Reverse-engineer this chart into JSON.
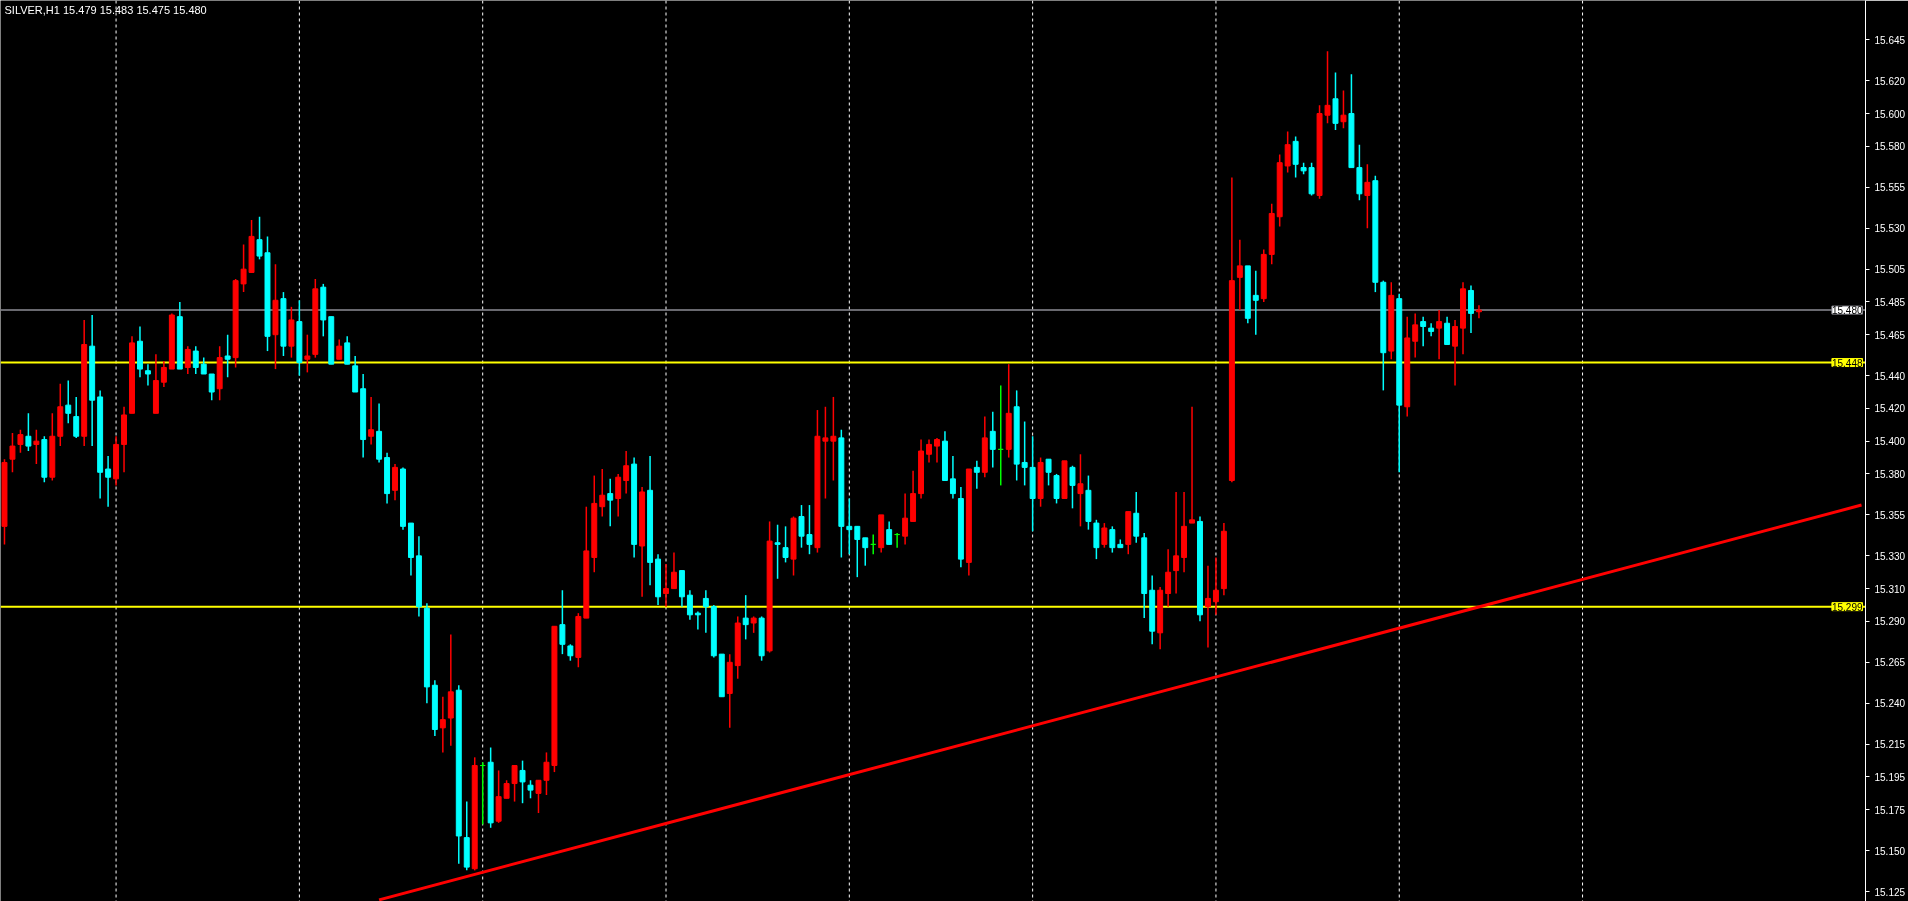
{
  "chart_data": {
    "type": "candlestick",
    "title": "SILVER,H1  15.479 15.483 15.475 15.480",
    "categories": [
      null,
      null,
      null,
      null,
      null,
      null,
      null,
      null,
      null,
      null,
      null,
      null,
      null,
      null,
      null,
      null,
      null,
      null,
      null,
      null,
      null,
      null,
      null,
      null,
      null,
      null,
      null,
      null,
      null,
      null,
      null,
      null,
      null,
      null,
      null,
      null,
      null,
      null,
      null,
      null,
      null,
      null,
      null,
      null,
      null,
      null,
      null,
      null,
      null,
      null,
      null,
      null,
      null,
      null,
      null,
      null,
      null,
      null,
      null,
      null,
      null,
      null,
      null,
      null,
      null,
      null,
      null,
      null,
      null,
      null,
      null,
      null,
      null,
      null,
      null,
      null,
      null,
      null,
      null,
      null,
      null,
      null,
      null,
      null,
      null,
      null,
      null,
      null,
      null,
      null,
      null,
      null,
      null,
      null,
      null,
      null,
      null,
      null,
      null,
      null,
      null,
      null,
      null,
      null,
      null,
      null,
      null,
      null,
      null,
      null,
      null,
      null,
      null,
      null,
      null,
      null,
      null,
      null,
      null,
      null,
      null,
      null,
      null,
      null,
      null,
      null,
      null,
      null,
      null,
      null,
      null,
      null,
      null,
      null,
      null,
      null,
      null,
      null,
      null,
      null,
      null,
      null,
      null,
      null,
      null,
      null,
      null,
      null,
      null,
      null,
      null,
      null,
      null,
      null,
      null,
      null,
      null,
      null,
      null,
      null,
      null,
      null,
      null,
      null,
      null,
      null,
      null,
      null,
      null,
      null,
      null,
      null,
      null,
      null,
      null,
      null,
      null,
      null,
      null,
      null,
      null,
      null,
      null,
      null,
      null,
      null,
      null,
      null,
      null,
      null,
      null,
      null,
      null,
      null,
      null,
      null,
      null,
      null,
      null,
      null,
      null,
      null,
      null,
      null,
      null,
      null,
      null,
      null,
      null,
      null,
      null,
      null,
      null,
      null,
      null,
      null,
      null,
      null,
      null,
      null,
      null,
      null,
      null,
      null,
      null,
      null,
      null,
      null,
      null,
      null,
      null,
      null,
      null,
      null
    ],
    "ohlc": [
      [
        15.348,
        15.389,
        15.337,
        15.387
      ],
      [
        15.389,
        15.405,
        15.381,
        15.397
      ],
      [
        15.398,
        15.407,
        15.393,
        15.404
      ],
      [
        15.403,
        15.417,
        15.394,
        15.397
      ],
      [
        15.398,
        15.407,
        15.386,
        15.4
      ],
      [
        15.401,
        15.403,
        15.375,
        15.378
      ],
      [
        15.378,
        15.417,
        15.376,
        15.403
      ],
      [
        15.403,
        15.435,
        15.397,
        15.421
      ],
      [
        15.422,
        15.437,
        15.411,
        15.417
      ],
      [
        15.415,
        15.427,
        15.402,
        15.403
      ],
      [
        15.403,
        15.474,
        15.397,
        15.459
      ],
      [
        15.458,
        15.477,
        15.397,
        15.425
      ],
      [
        15.427,
        15.431,
        15.365,
        15.381
      ],
      [
        15.383,
        15.391,
        15.36,
        15.378
      ],
      [
        15.377,
        15.403,
        15.373,
        15.398
      ],
      [
        15.398,
        15.421,
        15.381,
        15.416
      ],
      [
        15.417,
        15.464,
        15.417,
        15.46
      ],
      [
        15.461,
        15.47,
        15.439,
        15.444
      ],
      [
        15.443,
        15.447,
        15.434,
        15.441
      ],
      [
        15.417,
        15.453,
        15.417,
        15.437
      ],
      [
        15.436,
        15.449,
        15.433,
        15.445
      ],
      [
        15.444,
        15.478,
        15.444,
        15.477
      ],
      [
        15.476,
        15.485,
        15.444,
        15.444
      ],
      [
        15.445,
        15.458,
        15.441,
        15.456
      ],
      [
        15.455,
        15.458,
        15.441,
        15.445
      ],
      [
        15.447,
        15.451,
        15.441,
        15.441
      ],
      [
        15.441,
        15.441,
        15.425,
        15.43
      ],
      [
        15.432,
        15.458,
        15.425,
        15.451
      ],
      [
        15.452,
        15.465,
        15.439,
        15.45
      ],
      [
        15.451,
        15.499,
        15.445,
        15.498
      ],
      [
        15.496,
        15.52,
        15.491,
        15.505
      ],
      [
        15.503,
        15.535,
        15.503,
        15.525
      ],
      [
        15.523,
        15.537,
        15.511,
        15.513
      ],
      [
        15.515,
        15.525,
        15.455,
        15.464
      ],
      [
        15.465,
        15.508,
        15.444,
        15.486
      ],
      [
        15.487,
        15.491,
        15.452,
        15.458
      ],
      [
        15.458,
        15.482,
        15.451,
        15.474
      ],
      [
        15.473,
        15.486,
        15.44,
        15.448
      ],
      [
        15.45,
        15.465,
        15.442,
        15.452
      ],
      [
        15.453,
        15.499,
        15.451,
        15.493
      ],
      [
        15.494,
        15.496,
        15.464,
        15.474
      ],
      [
        15.476,
        15.476,
        15.447,
        15.447
      ],
      [
        15.45,
        15.462,
        15.45,
        15.458
      ],
      [
        15.46,
        15.464,
        15.447,
        15.447
      ],
      [
        15.446,
        15.452,
        15.43,
        15.43
      ],
      [
        15.432,
        15.441,
        15.39,
        15.401
      ],
      [
        15.403,
        15.427,
        15.398,
        15.407
      ],
      [
        15.406,
        15.423,
        15.387,
        15.389
      ],
      [
        15.39,
        15.393,
        15.362,
        15.368
      ],
      [
        15.37,
        15.386,
        15.364,
        15.384
      ],
      [
        15.383,
        15.384,
        15.346,
        15.348
      ],
      [
        15.35,
        15.35,
        15.318,
        15.329
      ],
      [
        15.33,
        15.342,
        15.293,
        15.299
      ],
      [
        15.298,
        15.301,
        15.24,
        15.25
      ],
      [
        15.251,
        15.254,
        15.22,
        15.224
      ],
      [
        15.225,
        15.244,
        15.21,
        15.23
      ],
      [
        15.231,
        15.282,
        15.214,
        15.247
      ],
      [
        15.248,
        15.251,
        15.142,
        15.159
      ],
      [
        15.158,
        15.18,
        15.138,
        15.14
      ],
      [
        15.139,
        15.207,
        15.138,
        15.202
      ],
      [
        15.202,
        15.204,
        15.166,
        15.202
      ],
      [
        15.204,
        15.213,
        15.164,
        15.167
      ],
      [
        15.168,
        15.199,
        15.167,
        15.183
      ],
      [
        15.182,
        15.193,
        15.182,
        15.191
      ],
      [
        15.191,
        15.202,
        15.18,
        15.202
      ],
      [
        15.199,
        15.205,
        15.179,
        15.192
      ],
      [
        15.19,
        15.193,
        15.182,
        15.187
      ],
      [
        15.185,
        15.193,
        15.173,
        15.193
      ],
      [
        15.193,
        15.21,
        15.184,
        15.204
      ],
      [
        15.202,
        15.287,
        15.198,
        15.287
      ],
      [
        15.288,
        15.309,
        15.27,
        15.276
      ],
      [
        15.275,
        15.276,
        15.266,
        15.269
      ],
      [
        15.268,
        15.295,
        15.262,
        15.293
      ],
      [
        15.292,
        15.36,
        15.292,
        15.333
      ],
      [
        15.329,
        15.379,
        15.32,
        15.362
      ],
      [
        15.36,
        15.383,
        15.354,
        15.367
      ],
      [
        15.368,
        15.377,
        15.348,
        15.364
      ],
      [
        15.365,
        15.38,
        15.354,
        15.378
      ],
      [
        15.376,
        15.394,
        15.368,
        15.385
      ],
      [
        15.386,
        15.39,
        15.329,
        15.337
      ],
      [
        15.336,
        15.372,
        15.305,
        15.369
      ],
      [
        15.37,
        15.391,
        15.312,
        15.326
      ],
      [
        15.328,
        15.331,
        15.3,
        15.305
      ],
      [
        15.307,
        15.325,
        15.299,
        15.31
      ],
      [
        15.31,
        15.332,
        15.31,
        15.32
      ],
      [
        15.321,
        15.321,
        15.299,
        15.305
      ],
      [
        15.306,
        15.309,
        15.291,
        15.294
      ],
      [
        15.295,
        15.296,
        15.285,
        15.294
      ],
      [
        15.304,
        15.309,
        15.283,
        15.299
      ],
      [
        15.299,
        15.3,
        15.268,
        15.269
      ],
      [
        15.27,
        15.27,
        15.244,
        15.244
      ],
      [
        15.246,
        15.27,
        15.225,
        15.265
      ],
      [
        15.263,
        15.293,
        15.255,
        15.289
      ],
      [
        15.292,
        15.306,
        15.279,
        15.288
      ],
      [
        15.289,
        15.293,
        15.283,
        15.292
      ],
      [
        15.292,
        15.293,
        15.266,
        15.269
      ],
      [
        15.272,
        15.351,
        15.271,
        15.339
      ],
      [
        15.338,
        15.349,
        15.316,
        15.337
      ],
      [
        15.335,
        15.348,
        15.326,
        15.329
      ],
      [
        15.328,
        15.354,
        15.318,
        15.353
      ],
      [
        15.354,
        15.361,
        15.335,
        15.342
      ],
      [
        15.343,
        15.361,
        15.331,
        15.337
      ],
      [
        15.335,
        15.419,
        15.332,
        15.403
      ],
      [
        15.4,
        15.421,
        15.365,
        15.402
      ],
      [
        15.4,
        15.427,
        15.376,
        15.403
      ],
      [
        15.402,
        15.407,
        15.329,
        15.348
      ],
      [
        15.348,
        15.365,
        15.331,
        15.346
      ],
      [
        15.348,
        15.348,
        15.317,
        15.34
      ],
      [
        15.341,
        15.341,
        15.324,
        15.335
      ],
      [
        15.337,
        15.343,
        15.331,
        15.337
      ],
      [
        15.335,
        15.355,
        15.332,
        15.355
      ],
      [
        15.346,
        15.351,
        15.337,
        15.337
      ],
      [
        15.343,
        15.344,
        15.335,
        15.343
      ],
      [
        15.342,
        15.368,
        15.337,
        15.353
      ],
      [
        15.351,
        15.382,
        15.351,
        15.368
      ],
      [
        15.368,
        15.401,
        15.365,
        15.394
      ],
      [
        15.392,
        15.401,
        15.387,
        15.398
      ],
      [
        15.397,
        15.402,
        15.387,
        15.401
      ],
      [
        15.4,
        15.406,
        15.376,
        15.376
      ],
      [
        15.377,
        15.391,
        15.365,
        15.368
      ],
      [
        15.365,
        15.372,
        15.323,
        15.328
      ],
      [
        15.326,
        15.383,
        15.318,
        15.383
      ],
      [
        15.384,
        15.388,
        15.371,
        15.381
      ],
      [
        15.381,
        15.415,
        15.378,
        15.402
      ],
      [
        15.406,
        15.418,
        15.384,
        15.395
      ],
      [
        15.395,
        15.434,
        15.373,
        15.395
      ],
      [
        15.395,
        15.447,
        15.39,
        15.417
      ],
      [
        15.421,
        15.431,
        15.376,
        15.386
      ],
      [
        15.387,
        15.412,
        15.373,
        15.384
      ],
      [
        15.384,
        15.403,
        15.345,
        15.365
      ],
      [
        15.365,
        15.39,
        15.36,
        15.387
      ],
      [
        15.389,
        15.389,
        15.373,
        15.381
      ],
      [
        15.379,
        15.38,
        15.362,
        15.365
      ],
      [
        15.365,
        15.388,
        15.365,
        15.388
      ],
      [
        15.384,
        15.385,
        15.359,
        15.373
      ],
      [
        15.368,
        15.392,
        15.348,
        15.374
      ],
      [
        15.37,
        15.379,
        15.346,
        15.351
      ],
      [
        15.35,
        15.352,
        15.328,
        15.335
      ],
      [
        15.337,
        15.35,
        15.335,
        15.347
      ],
      [
        15.346,
        15.348,
        15.332,
        15.335
      ],
      [
        15.337,
        15.34,
        15.335,
        15.335
      ],
      [
        15.337,
        15.357,
        15.331,
        15.357
      ],
      [
        15.356,
        15.369,
        15.338,
        15.342
      ],
      [
        15.341,
        15.344,
        15.292,
        15.307
      ],
      [
        15.309,
        15.318,
        15.276,
        15.284
      ],
      [
        15.283,
        15.311,
        15.273,
        15.309
      ],
      [
        15.307,
        15.334,
        15.299,
        15.32
      ],
      [
        15.321,
        15.369,
        15.307,
        15.33
      ],
      [
        15.329,
        15.369,
        15.32,
        15.348
      ],
      [
        15.35,
        15.421,
        15.35,
        15.352
      ],
      [
        15.351,
        15.354,
        15.29,
        15.294
      ],
      [
        15.299,
        15.324,
        15.274,
        15.304
      ],
      [
        15.302,
        15.329,
        15.294,
        15.309
      ],
      [
        15.31,
        15.35,
        15.306,
        15.345
      ],
      [
        15.376,
        15.561,
        15.375,
        15.498
      ],
      [
        15.5,
        15.523,
        15.48,
        15.507
      ],
      [
        15.507,
        15.507,
        15.472,
        15.475
      ],
      [
        15.489,
        15.504,
        15.465,
        15.486
      ],
      [
        15.487,
        15.517,
        15.485,
        15.514
      ],
      [
        15.514,
        15.545,
        15.508,
        15.539
      ],
      [
        15.537,
        15.575,
        15.531,
        15.57
      ],
      [
        15.568,
        15.589,
        15.564,
        15.581
      ],
      [
        15.583,
        15.586,
        15.561,
        15.569
      ],
      [
        15.567,
        15.57,
        15.563,
        15.565
      ],
      [
        15.567,
        15.57,
        15.55,
        15.551
      ],
      [
        15.55,
        15.605,
        15.548,
        15.6
      ],
      [
        15.599,
        15.638,
        15.594,
        15.605
      ],
      [
        15.609,
        15.625,
        15.59,
        15.594
      ],
      [
        15.595,
        15.614,
        15.591,
        15.599
      ],
      [
        15.6,
        15.624,
        15.567,
        15.567
      ],
      [
        15.567,
        15.581,
        15.547,
        15.551
      ],
      [
        15.55,
        15.569,
        15.53,
        15.558
      ],
      [
        15.559,
        15.562,
        15.491,
        15.497
      ],
      [
        15.497,
        15.498,
        15.431,
        15.454
      ],
      [
        15.455,
        15.497,
        15.45,
        15.489
      ],
      [
        15.487,
        15.49,
        15.381,
        15.422
      ],
      [
        15.421,
        15.476,
        15.415,
        15.463
      ],
      [
        15.461,
        15.478,
        15.451,
        15.471
      ],
      [
        15.473,
        15.476,
        15.458,
        15.47
      ],
      [
        15.469,
        15.472,
        15.464,
        15.467
      ],
      [
        15.469,
        15.48,
        15.45,
        15.473
      ],
      [
        15.472,
        15.476,
        15.459,
        15.459
      ],
      [
        15.458,
        15.474,
        15.434,
        15.47
      ],
      [
        15.469,
        15.497,
        15.453,
        15.493
      ],
      [
        15.492,
        15.495,
        15.466,
        15.478
      ],
      [
        15.479,
        15.483,
        15.475,
        15.48
      ],
      null,
      null,
      null,
      null,
      null,
      null,
      null,
      null,
      null,
      null,
      null,
      null,
      null,
      null,
      null,
      null,
      null,
      null,
      null,
      null,
      null,
      null,
      null,
      null,
      null,
      null,
      null,
      null,
      null,
      null,
      null,
      null,
      null,
      null,
      null,
      null,
      null,
      null,
      null,
      null,
      null,
      null,
      null,
      null,
      null,
      null,
      null,
      null
    ],
    "colors": [
      "#ff0000",
      "#ff0000",
      "#ff0000",
      "#00ffff",
      "#ff0000",
      "#00ffff",
      "#ff0000",
      "#ff0000",
      "#00ffff",
      "#00ffff",
      "#ff0000",
      "#00ffff",
      "#00ffff",
      "#00ffff",
      "#ff0000",
      "#ff0000",
      "#ff0000",
      "#00ffff",
      "#00ffff",
      "#ff0000",
      "#ff0000",
      "#ff0000",
      "#00ffff",
      "#ff0000",
      "#00ffff",
      "#00ffff",
      "#00ffff",
      "#ff0000",
      "#00ffff",
      "#ff0000",
      "#ff0000",
      "#ff0000",
      "#00ffff",
      "#00ffff",
      "#ff0000",
      "#00ffff",
      "#ff0000",
      "#00ffff",
      "#ff0000",
      "#ff0000",
      "#00ffff",
      "#00ffff",
      "#ff0000",
      "#00ffff",
      "#00ffff",
      "#00ffff",
      "#ff0000",
      "#00ffff",
      "#00ffff",
      "#ff0000",
      "#00ffff",
      "#00ffff",
      "#00ffff",
      "#00ffff",
      "#00ffff",
      "#ff0000",
      "#ff0000",
      "#00ffff",
      "#00ffff",
      "#ff0000",
      "#00ff00",
      "#00ffff",
      "#ff0000",
      "#ff0000",
      "#ff0000",
      "#00ffff",
      "#00ffff",
      "#ff0000",
      "#ff0000",
      "#ff0000",
      "#00ffff",
      "#00ffff",
      "#ff0000",
      "#ff0000",
      "#ff0000",
      "#ff0000",
      "#00ffff",
      "#ff0000",
      "#ff0000",
      "#00ffff",
      "#ff0000",
      "#00ffff",
      "#00ffff",
      "#ff0000",
      "#ff0000",
      "#00ffff",
      "#00ffff",
      "#00ffff",
      "#00ffff",
      "#00ffff",
      "#00ffff",
      "#ff0000",
      "#ff0000",
      "#00ffff",
      "#ff0000",
      "#00ffff",
      "#ff0000",
      "#00ffff",
      "#00ffff",
      "#ff0000",
      "#00ffff",
      "#00ffff",
      "#ff0000",
      "#ff0000",
      "#ff0000",
      "#00ffff",
      "#00ffff",
      "#00ffff",
      "#00ffff",
      "#00ff00",
      "#ff0000",
      "#00ffff",
      "#00ff00",
      "#ff0000",
      "#ff0000",
      "#ff0000",
      "#ff0000",
      "#ff0000",
      "#00ffff",
      "#00ffff",
      "#00ffff",
      "#ff0000",
      "#00ffff",
      "#ff0000",
      "#00ffff",
      "#00ff00",
      "#ff0000",
      "#00ffff",
      "#00ffff",
      "#00ffff",
      "#ff0000",
      "#00ffff",
      "#00ffff",
      "#ff0000",
      "#00ffff",
      "#ff0000",
      "#00ffff",
      "#00ffff",
      "#ff0000",
      "#00ffff",
      "#00ffff",
      "#ff0000",
      "#00ffff",
      "#00ffff",
      "#00ffff",
      "#ff0000",
      "#ff0000",
      "#ff0000",
      "#ff0000",
      "#ff0000",
      "#00ffff",
      "#ff0000",
      "#ff0000",
      "#ff0000",
      "#ff0000",
      "#ff0000",
      "#00ffff",
      "#00ffff",
      "#ff0000",
      "#ff0000",
      "#ff0000",
      "#ff0000",
      "#00ffff",
      "#00ffff",
      "#00ffff",
      "#ff0000",
      "#ff0000",
      "#00ffff",
      "#ff0000",
      "#00ffff",
      "#00ffff",
      "#ff0000",
      "#00ffff",
      "#00ffff",
      "#ff0000",
      "#00ffff",
      "#ff0000",
      "#ff0000",
      "#00ffff",
      "#00ffff",
      "#ff0000",
      "#00ffff",
      "#ff0000",
      "#ff0000",
      "#00ffff",
      "#ff0000",
      null,
      null,
      null,
      null,
      null,
      null,
      null,
      null,
      null,
      null,
      null,
      null,
      null,
      null,
      null,
      null,
      null,
      null,
      null,
      null,
      null,
      null,
      null,
      null,
      null,
      null,
      null,
      null,
      null,
      null,
      null,
      null,
      null,
      null,
      null,
      null,
      null,
      null,
      null,
      null,
      null,
      null,
      null,
      null,
      null,
      null,
      null,
      null
    ],
    "series": [
      {
        "type": "line",
        "color": "#ff0000",
        "values": [
          null,
          null,
          null,
          null,
          null,
          null,
          null,
          null,
          null,
          null,
          null,
          null,
          null,
          null,
          null,
          null,
          null,
          null,
          null,
          null,
          null,
          null,
          null,
          null,
          null,
          null,
          null,
          null,
          null,
          null,
          null,
          null,
          null,
          null,
          null,
          null,
          null,
          null,
          null,
          null,
          null,
          null,
          null,
          null,
          null,
          null,
          null,
          15.12,
          null,
          null,
          null,
          null,
          null,
          null,
          null,
          null,
          null,
          null,
          null,
          null,
          null,
          null,
          null,
          null,
          null,
          null,
          null,
          null,
          null,
          null,
          null,
          null,
          null,
          null,
          null,
          null,
          null,
          null,
          null,
          null,
          null,
          null,
          null,
          null,
          null,
          null,
          null,
          null,
          null,
          null,
          null,
          null,
          null,
          null,
          null,
          null,
          null,
          null,
          null,
          null,
          null,
          null,
          null,
          null,
          null,
          null,
          null,
          null,
          null,
          null,
          null,
          null,
          null,
          null,
          null,
          null,
          null,
          null,
          null,
          null,
          null,
          null,
          null,
          null,
          null,
          null,
          null,
          null,
          null,
          null,
          null,
          null,
          null,
          null,
          null,
          null,
          null,
          null,
          null,
          null,
          null,
          null,
          null,
          null,
          null,
          null,
          null,
          null,
          null,
          null,
          null,
          null,
          null,
          null,
          null,
          null,
          null,
          null,
          null,
          null,
          null,
          null,
          null,
          null,
          null,
          null,
          null,
          null,
          null,
          null,
          null,
          null,
          null,
          null,
          null,
          null,
          null,
          null,
          null,
          null,
          null,
          null,
          null,
          null,
          null,
          null,
          null,
          null,
          null,
          null,
          null,
          null,
          null,
          null,
          null,
          null,
          null,
          null,
          null,
          null,
          null,
          null,
          null,
          null,
          null,
          null,
          null,
          null,
          null,
          null,
          null,
          null,
          null,
          null,
          null,
          null,
          null,
          null,
          null,
          null,
          null,
          null,
          null,
          null,
          null,
          null,
          null,
          null,
          null,
          null,
          null,
          null,
          null,
          15.361
        ]
      }
    ],
    "ref_lines": [
      {
        "axis": "y",
        "value": 15.48,
        "label": "15.480",
        "color": "#8c8c94"
      },
      {
        "axis": "y",
        "value": 15.448,
        "label": "15.448",
        "color": "#ffff00"
      },
      {
        "axis": "y",
        "value": 15.299,
        "label": "15.299",
        "color": "#ffff00"
      }
    ],
    "ylim": [
      15.119,
      15.669
    ],
    "yticks": [
      {
        "value": 15.125,
        "label": "15.125"
      },
      {
        "value": 15.15,
        "label": "15.150"
      },
      {
        "value": 15.175,
        "label": "15.175"
      },
      {
        "value": 15.195,
        "label": "15.195"
      },
      {
        "value": 15.215,
        "label": "15.215"
      },
      {
        "value": 15.24,
        "label": "15.240"
      },
      {
        "value": 15.265,
        "label": "15.265"
      },
      {
        "value": 15.29,
        "label": "15.290"
      },
      {
        "value": 15.31,
        "label": "15.310"
      },
      {
        "value": 15.33,
        "label": "15.330"
      },
      {
        "value": 15.355,
        "label": "15.355"
      },
      {
        "value": 15.38,
        "label": "15.380"
      },
      {
        "value": 15.4,
        "label": "15.400"
      },
      {
        "value": 15.42,
        "label": "15.420"
      },
      {
        "value": 15.44,
        "label": "15.440"
      },
      {
        "value": 15.465,
        "label": "15.465"
      },
      {
        "value": 15.485,
        "label": "15.485"
      },
      {
        "value": 15.505,
        "label": "15.505"
      },
      {
        "value": 15.53,
        "label": "15.530"
      },
      {
        "value": 15.555,
        "label": "15.555"
      },
      {
        "value": 15.58,
        "label": "15.580"
      },
      {
        "value": 15.6,
        "label": "15.600"
      },
      {
        "value": 15.62,
        "label": "15.620"
      },
      {
        "value": 15.645,
        "label": "15.645"
      }
    ],
    "tick_labels": "y"
  }
}
